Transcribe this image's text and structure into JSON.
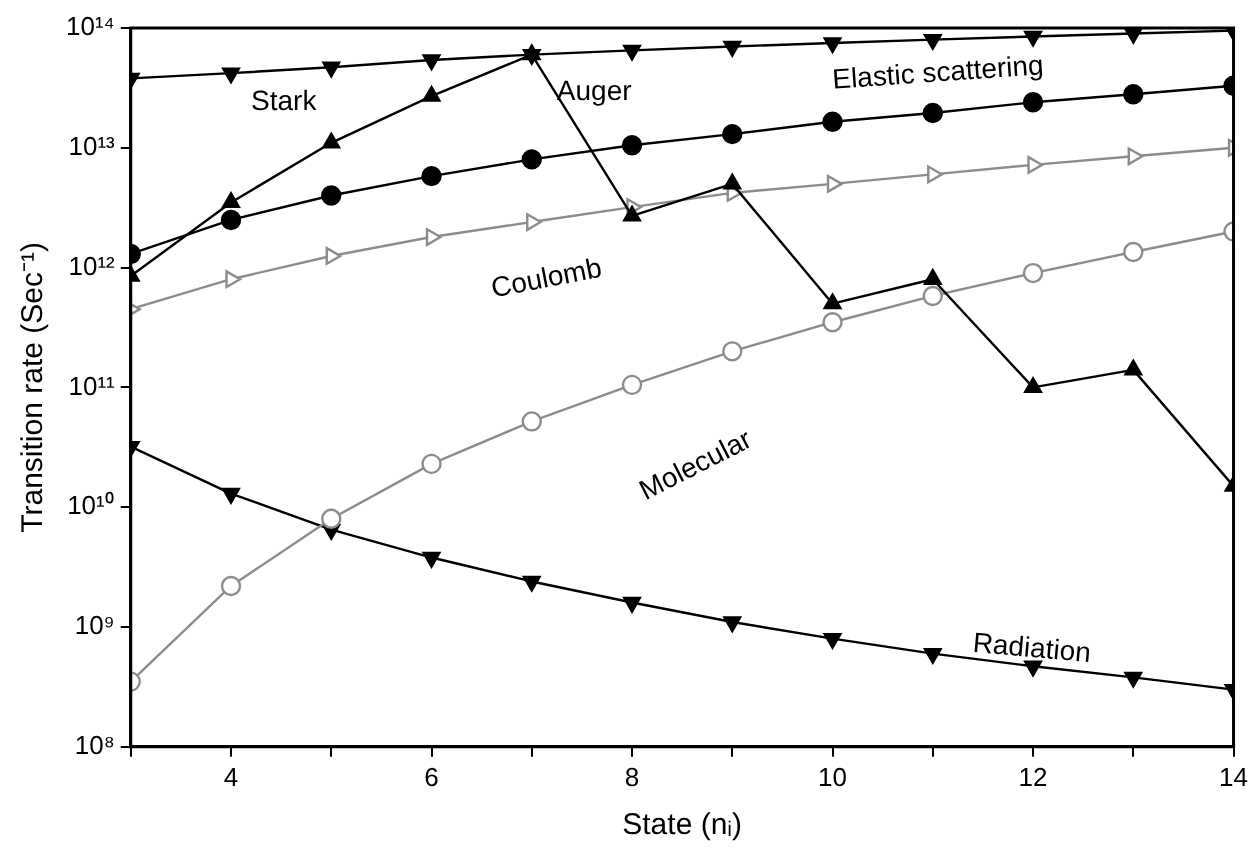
{
  "chart_data": {
    "type": "line",
    "xlabel": "State (nᵢ)",
    "ylabel": "Transition rate (Sec⁻¹)",
    "x": [
      3,
      4,
      5,
      6,
      7,
      8,
      9,
      10,
      11,
      12,
      13,
      14
    ],
    "series": [
      {
        "name": "Stark",
        "color": "#000000",
        "marker": "triangle",
        "values": [
          38000000000000.0,
          42000000000000.0,
          47000000000000.0,
          54000000000000.0,
          60000000000000.0,
          65000000000000.0,
          70000000000000.0,
          75000000000000.0,
          80000000000000.0,
          85000000000000.0,
          90000000000000.0,
          95000000000000.0
        ]
      },
      {
        "name": "Auger",
        "color": "#000000",
        "marker": "triangle",
        "values": [
          850000000000.0,
          3500000000000.0,
          11000000000000.0,
          27000000000000.0,
          60000000000000.0,
          2700000000000.0,
          5000000000000.0,
          500000000000.0,
          800000000000.0,
          100000000000.0,
          140000000000.0,
          15000000000.0
        ]
      },
      {
        "name": "Elastic scattering",
        "color": "#000000",
        "marker": "circle",
        "values": [
          1300000000000.0,
          2500000000000.0,
          4000000000000.0,
          5800000000000.0,
          8000000000000.0,
          10500000000000.0,
          13000000000000.0,
          16500000000000.0,
          19500000000000.0,
          24000000000000.0,
          28000000000000.0,
          33000000000000.0
        ]
      },
      {
        "name": "Coulomb",
        "color": "#8c8c8c",
        "marker": "triangle",
        "values": [
          450000000000.0,
          800000000000.0,
          1250000000000.0,
          1800000000000.0,
          2400000000000.0,
          3200000000000.0,
          4200000000000.0,
          5000000000000.0,
          6000000000000.0,
          7200000000000.0,
          8500000000000.0,
          10000000000000.0
        ]
      },
      {
        "name": "Molecular",
        "color": "#8c8c8c",
        "marker": "circle",
        "values": [
          350000000.0,
          2200000000.0,
          8000000000.0,
          23000000000.0,
          52000000000.0,
          105000000000.0,
          200000000000.0,
          350000000000.0,
          580000000000.0,
          900000000000.0,
          1350000000000.0,
          2000000000000.0
        ]
      },
      {
        "name": "Radiation",
        "color": "#000000",
        "marker": "triangle",
        "values": [
          32000000000.0,
          13000000000.0,
          6500000000.0,
          3800000000.0,
          2400000000.0,
          1600000000.0,
          1100000000.0,
          800000000.0,
          600000000.0,
          470000000.0,
          380000000.0,
          300000000.0
        ]
      }
    ],
    "xlim": [
      3,
      14
    ],
    "xticks": [
      {
        "value": 3,
        "label": null
      },
      4,
      {
        "value": 5,
        "label": null
      },
      6,
      {
        "value": 7,
        "label": null
      },
      8,
      {
        "value": 9,
        "label": null
      },
      10,
      {
        "value": 11,
        "label": null
      },
      12,
      {
        "value": 13,
        "label": null
      },
      14
    ],
    "ylim": [
      100000000.0,
      100000000000000.0
    ],
    "yticks": [
      {
        "value": 100000000.0,
        "label": "10⁸"
      },
      {
        "value": 1000000000.0,
        "label": "10⁹"
      },
      {
        "value": 10000000000.0,
        "label": "10¹⁰"
      },
      {
        "value": 100000000000.0,
        "label": "10¹¹"
      },
      {
        "value": 1000000000000.0,
        "label": "10¹²"
      },
      {
        "value": 10000000000000.0,
        "label": "10¹³"
      },
      {
        "value": 100000000000000.0,
        "label": "10¹⁴"
      }
    ],
    "log": "y",
    "grid": false,
    "legend": false,
    "line_style": "solid"
  }
}
